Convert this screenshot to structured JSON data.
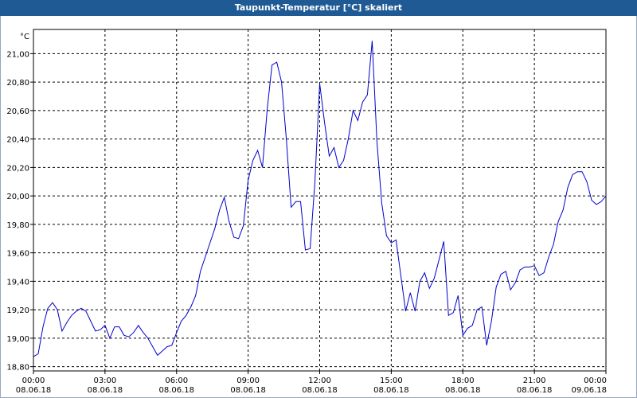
{
  "window": {
    "title": "Taupunkt-Temperatur [°C] skaliert"
  },
  "colors": {
    "title_bar": "#1f5a94",
    "line": "#0000cc",
    "grid": "#000000",
    "axis": "#000000"
  },
  "chart_data": {
    "type": "line",
    "title": "Taupunkt-Temperatur [°C] skaliert",
    "ylabel": "°C",
    "xlabel": "",
    "ylim": [
      18.77,
      21.17
    ],
    "xlim": [
      0,
      24
    ],
    "grid": true,
    "y_ticks": [
      18.8,
      19.0,
      19.2,
      19.4,
      19.6,
      19.8,
      20.0,
      20.2,
      20.4,
      20.6,
      20.8,
      21.0
    ],
    "y_tick_labels": [
      "18,80",
      "19,00",
      "19,20",
      "19,40",
      "19,60",
      "19,80",
      "20,00",
      "20,20",
      "20,40",
      "20,60",
      "20,80",
      "21,00"
    ],
    "x_ticks": [
      0,
      3,
      6,
      9,
      12,
      15,
      18,
      21,
      24
    ],
    "x_tick_labels": [
      {
        "time": "00:00",
        "date": "08.06.18"
      },
      {
        "time": "03:00",
        "date": "08.06.18"
      },
      {
        "time": "06:00",
        "date": "08.06.18"
      },
      {
        "time": "09:00",
        "date": "08.06.18"
      },
      {
        "time": "12:00",
        "date": "08.06.18"
      },
      {
        "time": "15:00",
        "date": "08.06.18"
      },
      {
        "time": "18:00",
        "date": "08.06.18"
      },
      {
        "time": "21:00",
        "date": "08.06.18"
      },
      {
        "time": "00:00",
        "date": "09.06.18"
      }
    ],
    "x": [
      0.0,
      0.2,
      0.4,
      0.6,
      0.8,
      1.0,
      1.2,
      1.4,
      1.6,
      1.8,
      2.0,
      2.2,
      2.4,
      2.6,
      2.8,
      3.0,
      3.2,
      3.4,
      3.6,
      3.8,
      4.0,
      4.2,
      4.4,
      4.6,
      4.8,
      5.0,
      5.2,
      5.4,
      5.6,
      5.8,
      6.0,
      6.2,
      6.4,
      6.6,
      6.8,
      7.0,
      7.2,
      7.4,
      7.6,
      7.8,
      8.0,
      8.2,
      8.4,
      8.6,
      8.8,
      9.0,
      9.2,
      9.4,
      9.6,
      9.8,
      10.0,
      10.2,
      10.4,
      10.6,
      10.8,
      11.0,
      11.2,
      11.4,
      11.6,
      11.8,
      12.0,
      12.2,
      12.4,
      12.6,
      12.8,
      13.0,
      13.2,
      13.4,
      13.6,
      13.8,
      14.0,
      14.2,
      14.4,
      14.6,
      14.8,
      15.0,
      15.2,
      15.4,
      15.6,
      15.8,
      16.0,
      16.2,
      16.4,
      16.6,
      16.8,
      17.0,
      17.2,
      17.4,
      17.6,
      17.8,
      18.0,
      18.2,
      18.4,
      18.6,
      18.8,
      19.0,
      19.2,
      19.4,
      19.6,
      19.8,
      20.0,
      20.2,
      20.4,
      20.6,
      20.8,
      21.0,
      21.2,
      21.4,
      21.6,
      21.8,
      22.0,
      22.2,
      22.4,
      22.6,
      22.8,
      23.0,
      23.2,
      23.4,
      23.6,
      23.8,
      24.0
    ],
    "series": [
      {
        "values": [
          18.87,
          18.89,
          19.08,
          19.21,
          19.25,
          19.2,
          19.05,
          19.11,
          19.16,
          19.19,
          19.21,
          19.19,
          19.12,
          19.05,
          19.06,
          19.09,
          19.0,
          19.08,
          19.08,
          19.02,
          19.01,
          19.04,
          19.09,
          19.04,
          19.0,
          18.94,
          18.88,
          18.91,
          18.94,
          18.95,
          19.04,
          19.12,
          19.16,
          19.22,
          19.3,
          19.47,
          19.57,
          19.67,
          19.77,
          19.9,
          19.99,
          19.82,
          19.71,
          19.7,
          19.79,
          20.11,
          20.25,
          20.32,
          20.2,
          20.61,
          20.92,
          20.94,
          20.8,
          20.4,
          19.92,
          19.96,
          19.96,
          19.62,
          19.63,
          20.1,
          20.79,
          20.52,
          20.28,
          20.34,
          20.2,
          20.25,
          20.4,
          20.6,
          20.53,
          20.66,
          20.71,
          21.09,
          20.38,
          19.95,
          19.72,
          19.67,
          19.69,
          19.44,
          19.19,
          19.32,
          19.19,
          19.4,
          19.46,
          19.35,
          19.42,
          19.55,
          19.68,
          19.16,
          19.18,
          19.3,
          19.02,
          19.07,
          19.09,
          19.2,
          19.22,
          18.95,
          19.12,
          19.36,
          19.45,
          19.47,
          19.34,
          19.39,
          19.48,
          19.5,
          19.5,
          19.51,
          19.44,
          19.46,
          19.57,
          19.66,
          19.82,
          19.9,
          20.06,
          20.15,
          20.17,
          20.17,
          20.1,
          19.97,
          19.94,
          19.96,
          20.0
        ]
      }
    ]
  }
}
